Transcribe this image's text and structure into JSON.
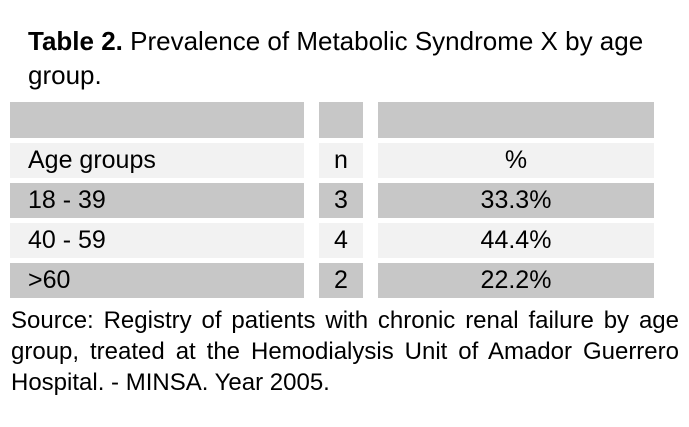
{
  "title": {
    "label": "Table 2.",
    "text": "Prevalence of Metabolic Syndrome X by age group."
  },
  "table": {
    "columns": [
      "Age groups",
      "n",
      "%"
    ],
    "rows": [
      [
        "18 - 39",
        "3",
        "33.3%"
      ],
      [
        "40 - 59",
        "4",
        "44.4%"
      ],
      [
        ">60",
        "2",
        "22.2%"
      ]
    ]
  },
  "source": "Source: Registry of patients with chronic renal failure by age group, treated at the Hemodialysis Unit of Amador Guerrero Hospital. - MINSA. Year 2005.",
  "colors": {
    "row_gray": "#c7c7c7",
    "row_light": "#f2f2f2",
    "background": "#ffffff",
    "text": "#000000"
  }
}
